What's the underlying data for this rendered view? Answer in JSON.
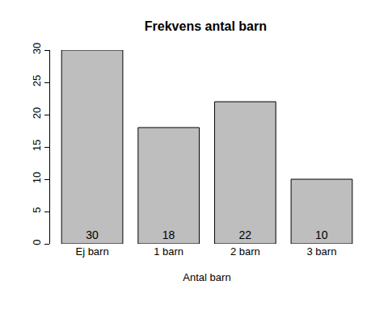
{
  "chart_data": {
    "type": "bar",
    "title": "Frekvens antal barn",
    "x_label": "Antal barn",
    "categories": [
      "Ej barn",
      "1 barn",
      "2 barn",
      "3 barn"
    ],
    "values": [
      30,
      18,
      22,
      10
    ],
    "color": "#bebebe",
    "ylim": [
      0,
      30
    ],
    "yticks": [
      0,
      5,
      10,
      15,
      20,
      25,
      30
    ],
    "grid": false,
    "data_labels": true
  }
}
